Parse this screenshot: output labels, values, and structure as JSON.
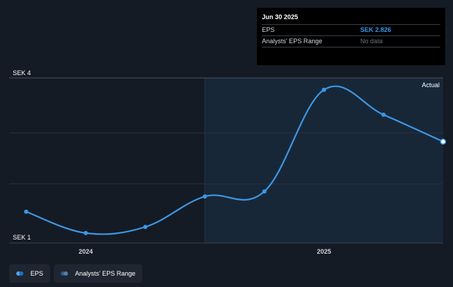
{
  "tooltip": {
    "date": "Jun 30 2025",
    "rows": [
      {
        "label": "EPS",
        "value": "SEK 2.826"
      },
      {
        "label": "Analysts' EPS Range",
        "value": "No data"
      }
    ]
  },
  "legend": {
    "items": [
      {
        "label": "EPS",
        "color_a": "#53a7f0",
        "color_b": "#1f6fc4"
      },
      {
        "label": "Analysts' EPS Range",
        "color_a": "#2f5d8a",
        "color_b": "#4c7fae"
      }
    ]
  },
  "colors": {
    "line": "#3c97e6",
    "background": "#151b24",
    "forecast_region": "#172738",
    "grid": "#2b323c"
  },
  "chart_data": {
    "type": "line",
    "title": "",
    "xlabel": "",
    "ylabel": "",
    "currency": "SEK",
    "y_tick_labels": [
      "SEK 4",
      "SEK 1"
    ],
    "y_ticks": [
      4,
      1
    ],
    "ylim": [
      1,
      4
    ],
    "x_tick_labels": [
      "2024",
      "2025"
    ],
    "x_ticks": [
      2024.0,
      2025.0
    ],
    "xlim": [
      2023.75,
      2025.5
    ],
    "region_label": "Actual",
    "region_start": 2024.5,
    "series": [
      {
        "name": "EPS",
        "x": [
          2023.75,
          2024.0,
          2024.25,
          2024.5,
          2024.75,
          2025.0,
          2025.25,
          2025.5
        ],
        "y": [
          1.45,
          1.03,
          1.15,
          1.75,
          1.85,
          3.85,
          3.36,
          2.83
        ]
      }
    ]
  }
}
